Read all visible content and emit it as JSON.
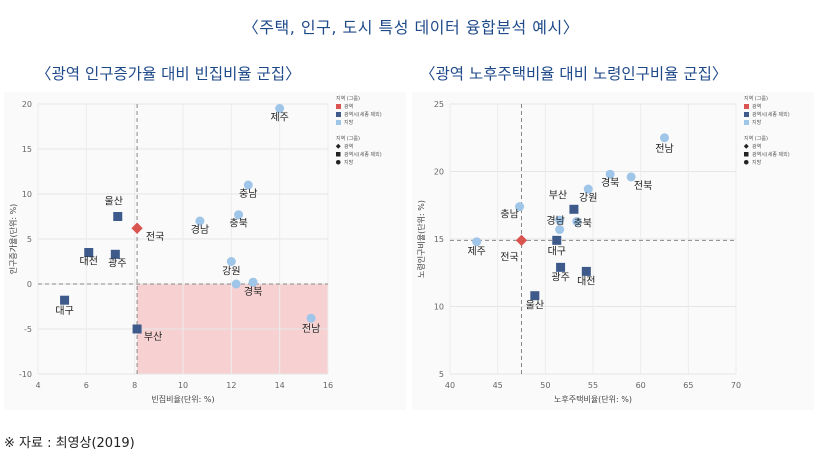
{
  "page": {
    "title": "〈주택, 인구, 도시 특성 데이터 융합분석 예시〉",
    "source": "※ 자료 : 최영상(2019)"
  },
  "colors": {
    "metro": "#d9534f",
    "city": "#3d5a8a",
    "region": "#9fc5e8",
    "highlight": "#f6c9c9"
  },
  "chart_data": [
    {
      "type": "scatter",
      "title": "〈광역 인구증가율 대비 빈집비율 군집〉",
      "xlabel": "빈집비율(단위: %)",
      "ylabel": "인구증가율(단위: %)",
      "xlim": [
        4,
        16
      ],
      "ylim": [
        -10,
        20
      ],
      "xticks": [
        4,
        6,
        8,
        10,
        12,
        14,
        16
      ],
      "yticks": [
        -10,
        -5,
        0,
        5,
        10,
        15,
        20
      ],
      "ref_x": 8.1,
      "ref_y": 0,
      "highlight_region": {
        "x": [
          8.1,
          16
        ],
        "y": [
          -10,
          0
        ]
      },
      "legend": {
        "group1_title": "지역 (그룹)",
        "group1_items": [
          "광역",
          "광역시(세종 제외)",
          "지방"
        ],
        "group2_title": "지역 (그룹)",
        "group2_items": [
          "광역",
          "광역시(세종 제외)",
          "지방"
        ]
      },
      "points": [
        {
          "label": "제주",
          "x": 14.0,
          "y": 19.5,
          "group": "region",
          "lx": 0,
          "ly": 12
        },
        {
          "label": "충남",
          "x": 12.7,
          "y": 11.0,
          "group": "region",
          "lx": 0,
          "ly": 12
        },
        {
          "label": "울산",
          "x": 7.3,
          "y": 7.5,
          "group": "city",
          "lx": -4,
          "ly": -12
        },
        {
          "label": "충북",
          "x": 12.3,
          "y": 7.7,
          "group": "region",
          "lx": 0,
          "ly": 12
        },
        {
          "label": "경남",
          "x": 10.7,
          "y": 7.0,
          "group": "region",
          "lx": 0,
          "ly": 12
        },
        {
          "label": "전국",
          "x": 8.1,
          "y": 6.2,
          "group": "metro",
          "lx": 18,
          "ly": 12
        },
        {
          "label": "대전",
          "x": 6.1,
          "y": 3.5,
          "group": "city",
          "lx": 0,
          "ly": 12
        },
        {
          "label": "광주",
          "x": 7.2,
          "y": 3.3,
          "group": "city",
          "lx": 2,
          "ly": 12
        },
        {
          "label": "강원",
          "x": 12.0,
          "y": 2.5,
          "group": "region",
          "lx": 0,
          "ly": 13
        },
        {
          "label": "경북",
          "x": 12.9,
          "y": 0.2,
          "group": "region",
          "lx": 0,
          "ly": 13
        },
        {
          "label": "",
          "x": 12.2,
          "y": 0.0,
          "group": "region",
          "lx": 0,
          "ly": 0
        },
        {
          "label": "대구",
          "x": 5.1,
          "y": -1.8,
          "group": "city",
          "lx": 0,
          "ly": 14
        },
        {
          "label": "부산",
          "x": 8.1,
          "y": -5.0,
          "group": "city",
          "lx": 16,
          "ly": 11
        },
        {
          "label": "전남",
          "x": 15.3,
          "y": -3.8,
          "group": "region",
          "lx": 0,
          "ly": 14
        }
      ]
    },
    {
      "type": "scatter",
      "title": "〈광역 노후주택비율 대비 노령인구비율 군집〉",
      "xlabel": "노후주택비율(단위: %)",
      "ylabel": "노령인구비율(단위: %)",
      "xlim": [
        40,
        70
      ],
      "ylim": [
        5,
        25
      ],
      "xticks": [
        40,
        45,
        50,
        55,
        60,
        65,
        70
      ],
      "yticks": [
        5,
        10,
        15,
        20,
        25
      ],
      "ref_x": 47.5,
      "ref_y": 14.9,
      "highlight_region": null,
      "legend": {
        "group1_title": "지역 (그룹)",
        "group1_items": [
          "광역",
          "광역시(세종 제외)",
          "지방"
        ],
        "group2_title": "지역 (그룹)",
        "group2_items": [
          "광역",
          "광역시(세종 제외)",
          "지방"
        ]
      },
      "points": [
        {
          "label": "전남",
          "x": 62.5,
          "y": 22.5,
          "group": "region",
          "lx": 0,
          "ly": 14
        },
        {
          "label": "경북",
          "x": 56.8,
          "y": 19.8,
          "group": "region",
          "lx": 0,
          "ly": 12
        },
        {
          "label": "전북",
          "x": 59.0,
          "y": 19.6,
          "group": "region",
          "lx": 12,
          "ly": 12
        },
        {
          "label": "강원",
          "x": 54.5,
          "y": 18.7,
          "group": "region",
          "lx": 0,
          "ly": 12
        },
        {
          "label": "부산",
          "x": 53.0,
          "y": 17.2,
          "group": "city",
          "lx": -16,
          "ly": -11
        },
        {
          "label": "충남",
          "x": 47.3,
          "y": 17.4,
          "group": "region",
          "lx": -10,
          "ly": 11
        },
        {
          "label": "경남",
          "x": 51.5,
          "y": 16.4,
          "group": "region",
          "lx": -4,
          "ly": 4
        },
        {
          "label": "충북",
          "x": 53.3,
          "y": 16.3,
          "group": "region",
          "lx": 6,
          "ly": 5
        },
        {
          "label": "",
          "x": 51.5,
          "y": 15.7,
          "group": "region",
          "lx": 0,
          "ly": 0
        },
        {
          "label": "대구",
          "x": 51.2,
          "y": 14.9,
          "group": "city",
          "lx": 0,
          "ly": 14
        },
        {
          "label": "전국",
          "x": 47.5,
          "y": 14.9,
          "group": "metro",
          "lx": -12,
          "ly": 20
        },
        {
          "label": "제주",
          "x": 42.8,
          "y": 14.8,
          "group": "region",
          "lx": 0,
          "ly": 13
        },
        {
          "label": "광주",
          "x": 51.6,
          "y": 12.9,
          "group": "city",
          "lx": 0,
          "ly": 13
        },
        {
          "label": "대전",
          "x": 54.3,
          "y": 12.6,
          "group": "city",
          "lx": 0,
          "ly": 13
        },
        {
          "label": "울산",
          "x": 48.9,
          "y": 10.8,
          "group": "city",
          "lx": 0,
          "ly": 13
        }
      ]
    }
  ]
}
